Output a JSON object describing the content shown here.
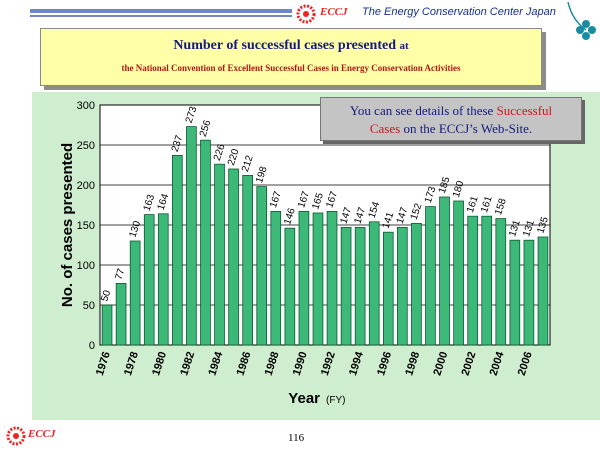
{
  "header": {
    "brand": "ECCJ",
    "org": "The Energy Conservation Center Japan"
  },
  "title": {
    "main": "Number of successful cases presented",
    "main_suffix": "at",
    "sub": "the National Convention of Excellent Successful Cases in Energy Conservation Activities"
  },
  "info": {
    "line1_a": "You can see details of these ",
    "line1_b": "Successful",
    "line2_a": "Cases",
    "line2_b": " on the ECCJ’s Web-Site."
  },
  "footer": {
    "brand": "ECCJ",
    "page": "116"
  },
  "colors": {
    "bar_fill": "#3cb878",
    "bar_stroke": "#0c5a2e",
    "panel": "#cfeecf",
    "title_bg": "#ffffa8",
    "eccj_red": "#ee2222",
    "navy": "#141a7e"
  },
  "chart_data": {
    "type": "bar",
    "x": [
      1976,
      1977,
      1978,
      1979,
      1980,
      1981,
      1982,
      1983,
      1984,
      1985,
      1986,
      1987,
      1988,
      1989,
      1990,
      1991,
      1992,
      1993,
      1994,
      1995,
      1996,
      1997,
      1998,
      1999,
      2000,
      2001,
      2002,
      2003,
      2004,
      2005,
      2006,
      2007
    ],
    "values": [
      50,
      77,
      130,
      163,
      164,
      237,
      273,
      256,
      226,
      220,
      212,
      198,
      167,
      146,
      167,
      165,
      167,
      147,
      147,
      154,
      141,
      147,
      152,
      173,
      185,
      180,
      161,
      161,
      158,
      131,
      131,
      135
    ],
    "x_tick_labels": [
      "1976",
      "1978",
      "1980",
      "1982",
      "1984",
      "1986",
      "1988",
      "1990",
      "1992",
      "1994",
      "1996",
      "1998",
      "2000",
      "2002",
      "2004",
      "2006"
    ],
    "ylabel": "No. of cases presented",
    "xlabel": "Year",
    "xlabel_unit": "(FY)",
    "ylim": [
      0,
      300
    ],
    "y_ticks": [
      0,
      50,
      100,
      150,
      200,
      250,
      300
    ],
    "grid": true
  }
}
